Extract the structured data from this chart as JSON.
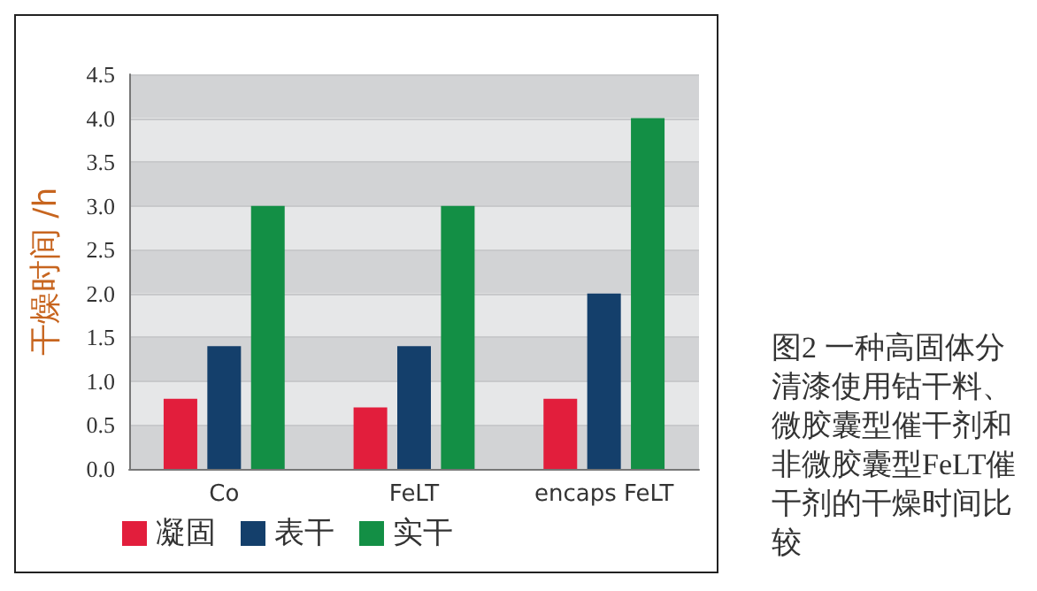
{
  "chart_data": {
    "type": "bar",
    "ylabel": "干燥时间 /h",
    "categories": [
      "Co",
      "FeLT",
      "encaps FeLT"
    ],
    "series": [
      {
        "name": "凝固",
        "color": "#e21e3c",
        "values": [
          0.8,
          0.7,
          0.8
        ]
      },
      {
        "name": "表干",
        "color": "#143f6b",
        "values": [
          1.4,
          1.4,
          2.0
        ]
      },
      {
        "name": "实干",
        "color": "#138f45",
        "values": [
          3.0,
          3.0,
          4.0
        ]
      }
    ],
    "ylim": [
      0,
      4.5
    ],
    "yticks": [
      {
        "value": 0,
        "label": "0.0"
      },
      {
        "value": 0.5,
        "label": "0.5"
      },
      {
        "value": 1,
        "label": "1.0"
      },
      {
        "value": 1.5,
        "label": "1.5"
      },
      {
        "value": 2,
        "label": "2.0"
      },
      {
        "value": 2.5,
        "label": "2.5"
      },
      {
        "value": 3,
        "label": "3.0"
      },
      {
        "value": 3.5,
        "label": "3.5"
      },
      {
        "value": 4,
        "label": "4.0"
      },
      {
        "value": 4.5,
        "label": "4.5"
      }
    ],
    "grid": "y",
    "legend": "bottom left",
    "annotations": [
      "图2  一种高固体分清漆使用钴干料、微胶囊型催干剂和非微胶囊型FeLT催干剂的干燥时间比较"
    ]
  }
}
